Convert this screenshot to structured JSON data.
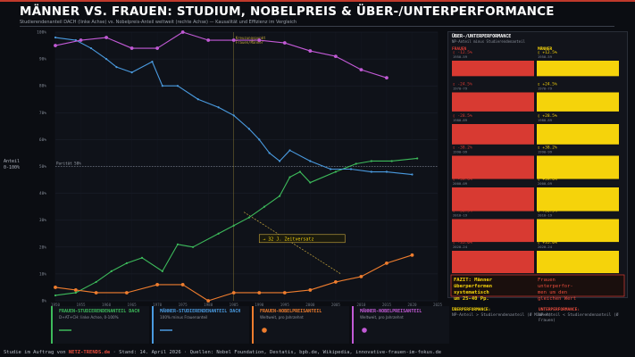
{
  "title": "MÄNNER VS. FRAUEN: STUDIUM, NOBELPREIS & ÜBER-/UNTERPERFORMANCE",
  "subtitle": "Studierendenanteil DACH (linke Achse) vs. Nobelpreis-Anteil weltweit (rechte Achse) — Kausalität und Effizienz im Vergleich",
  "y_axis_label": [
    "Anteil",
    "0-100%"
  ],
  "parity_label": "Parität 50%",
  "crossover_label": [
    "Kreuzungspunkt",
    "Frauen/Männer"
  ],
  "lag_annotation": "→ 32 J. Zeitversatz",
  "colors": {
    "women_students": "#3dbb5b",
    "men_students": "#4a9be0",
    "women_nobel": "#ef7d2e",
    "men_nobel": "#c25ad6",
    "red": "#d83a32",
    "yellow": "#f5d30b"
  },
  "chart_data": {
    "type": "line",
    "x_range": [
      1950,
      2025
    ],
    "ylim": [
      0,
      100
    ],
    "yticks": [
      "0%",
      "10%",
      "20%",
      "30%",
      "40%",
      "50%",
      "60%",
      "70%",
      "80%",
      "90%",
      "100%"
    ],
    "x_ticks": [
      "1950",
      "1955",
      "1960",
      "1965",
      "1970",
      "1975",
      "1980",
      "1985",
      "1990",
      "1995",
      "2000",
      "2005",
      "2010",
      "2015",
      "2020",
      "2025"
    ],
    "series": [
      {
        "name": "Frauen-Studierendenanteil DACH",
        "color": "#3dbb5b",
        "points": [
          [
            1950,
            2
          ],
          [
            1954,
            3
          ],
          [
            1958,
            7
          ],
          [
            1961,
            11
          ],
          [
            1964,
            14
          ],
          [
            1967,
            16
          ],
          [
            1971,
            11
          ],
          [
            1974,
            21
          ],
          [
            1977,
            20
          ],
          [
            1982,
            25
          ],
          [
            1985,
            28
          ],
          [
            1988,
            31
          ],
          [
            1991,
            35
          ],
          [
            1994,
            39
          ],
          [
            1996,
            46
          ],
          [
            1998,
            48
          ],
          [
            2000,
            44
          ],
          [
            2005,
            48
          ],
          [
            2009,
            51
          ],
          [
            2012,
            52
          ],
          [
            2016,
            52
          ],
          [
            2021,
            53
          ]
        ]
      },
      {
        "name": "Männer-Studierendenanteil DACH",
        "color": "#4a9be0",
        "points": [
          [
            1950,
            98
          ],
          [
            1954,
            97
          ],
          [
            1957,
            94
          ],
          [
            1960,
            90
          ],
          [
            1962,
            87
          ],
          [
            1965,
            85
          ],
          [
            1969,
            89
          ],
          [
            1971,
            80
          ],
          [
            1974,
            80
          ],
          [
            1978,
            75
          ],
          [
            1982,
            72
          ],
          [
            1985,
            69
          ],
          [
            1988,
            64
          ],
          [
            1990,
            60
          ],
          [
            1992,
            55
          ],
          [
            1994,
            52
          ],
          [
            1996,
            56
          ],
          [
            2000,
            52
          ],
          [
            2004,
            49
          ],
          [
            2008,
            49
          ],
          [
            2012,
            48
          ],
          [
            2015,
            48
          ],
          [
            2020,
            47
          ]
        ]
      },
      {
        "name": "Frauen-Nobelpreisanteil",
        "color": "#ef7d2e",
        "points": [
          [
            1950,
            5
          ],
          [
            1954,
            4
          ],
          [
            1958,
            3
          ],
          [
            1964,
            3
          ],
          [
            1970,
            6
          ],
          [
            1975,
            6
          ],
          [
            1980,
            0
          ],
          [
            1985,
            3
          ],
          [
            1990,
            3
          ],
          [
            1995,
            3
          ],
          [
            2000,
            4
          ],
          [
            2005,
            7
          ],
          [
            2010,
            9
          ],
          [
            2015,
            14
          ],
          [
            2020,
            17
          ]
        ]
      },
      {
        "name": "Männer-Nobelpreisanteil",
        "color": "#c25ad6",
        "points": [
          [
            1950,
            95
          ],
          [
            1955,
            97
          ],
          [
            1960,
            98
          ],
          [
            1965,
            94
          ],
          [
            1970,
            94
          ],
          [
            1975,
            100
          ],
          [
            1980,
            97
          ],
          [
            1985,
            97
          ],
          [
            1990,
            97
          ],
          [
            1995,
            96
          ],
          [
            2000,
            93
          ],
          [
            2005,
            91
          ],
          [
            2010,
            86
          ],
          [
            2015,
            83
          ]
        ]
      }
    ]
  },
  "right_panel": {
    "title": "ÜBER-/UNTERPERFORMANCE",
    "subtitle": "NP-Anteil minus Studierendenanteil",
    "col_headers": [
      "FRAUEN",
      "MÄNNER"
    ],
    "rows": [
      {
        "period": "1950-59",
        "women": "▯ -12.5%",
        "men": "▯ +12.5%",
        "women_level": 0.31,
        "men_level": 0.31
      },
      {
        "period": "1970-79",
        "women": "▯ -24.5%",
        "men": "▯ +24.5%",
        "women_level": 0.6,
        "men_level": 0.6
      },
      {
        "period": "1980-89",
        "women": "▯ -28.5%",
        "men": "▯ +28.5%",
        "women_level": 0.7,
        "men_level": 0.7
      },
      {
        "period": "1990-99",
        "women": "▯ -38.2%",
        "men": "▯ +38.2%",
        "women_level": 0.93,
        "men_level": 0.93
      },
      {
        "period": "2000-09",
        "women": "▯ -39.6%",
        "men": "▯ +39.6%",
        "women_level": 0.97,
        "men_level": 0.97
      },
      {
        "period": "2010-19",
        "women": "▯ -36.5%",
        "men": "▯ +36.5%",
        "women_level": 0.9,
        "men_level": 0.9
      },
      {
        "period": "2020-24",
        "women": "▯ -35.0%",
        "men": "▯ +35.0%",
        "women_level": 0.86,
        "men_level": 0.86
      }
    ],
    "fazit_men": "FAZIT: Männer\nüberperformen\nsystematisch\num 25-40 Pp.",
    "fazit_women": "Frauen\nunterperfor-\nmen um den\ngleichen Wert"
  },
  "legend": [
    {
      "title": "FRAUEN-STUDIERENDENANTEIL DACH",
      "sub": "D+AT+CH: linke Achse, 0-100%",
      "color": "#3dbb5b"
    },
    {
      "title": "MÄNNER-STUDIERENDENANTEIL DACH",
      "sub": "100% minus Frauenanteil",
      "color": "#4a9be0"
    },
    {
      "title": "FRAUEN-NOBELPREISANTEIL",
      "sub": "Weltweit, pro Jahrzehnt",
      "color": "#ef7d2e"
    },
    {
      "title": "MÄNNER-NOBELPREISANTEIL",
      "sub": "Weltweit, pro Jahrzehnt",
      "color": "#c25ad6"
    }
  ],
  "bottom_info": {
    "over_title": "ÜBERPERFORMANCE:",
    "over_sub": "NP-Anteil > Studierendenanteil (Ø Männer)",
    "under_title": "UNTERPERFORMANCE:",
    "under_sub": "NP-Anteil < Studierendenanteil (Ø Frauen)"
  },
  "footer": {
    "prefix": "Studie im Auftrag von ",
    "brand": "NETZ-TRENDS.de",
    "rest": "  ·  Stand: 14. April 2026  ·  Quellen: Nobel Foundation, Destatis, bpb.de, Wikipedia, innovative-frauen-im-fokus.de"
  }
}
